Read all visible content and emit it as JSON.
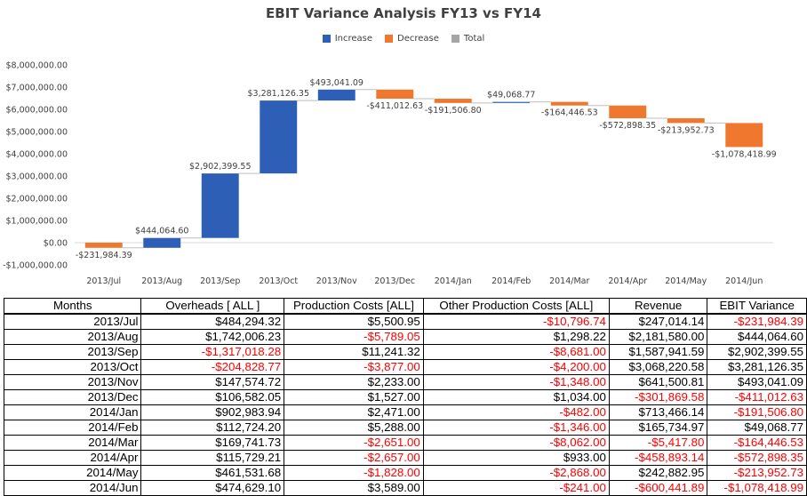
{
  "chart_data": {
    "type": "waterfall",
    "title": "EBIT Variance Analysis FY13 vs FY14",
    "legend": {
      "position": "top",
      "items": [
        {
          "label": "Increase",
          "color": "#2e5fb6"
        },
        {
          "label": "Decrease",
          "color": "#f0772e"
        },
        {
          "label": "Total",
          "color": "#a5a5a5"
        }
      ]
    },
    "categories": [
      "2013/Jul",
      "2013/Aug",
      "2013/Sep",
      "2013/Oct",
      "2013/Nov",
      "2013/Dec",
      "2014/Jan",
      "2014/Feb",
      "2014/Mar",
      "2014/Apr",
      "2014/May",
      "2014/Jun"
    ],
    "values": [
      -231984.39,
      444064.6,
      2902399.55,
      3281126.35,
      493041.09,
      -411012.63,
      -191506.8,
      49068.77,
      -164446.53,
      -572898.35,
      -213952.73,
      -1078418.99
    ],
    "data_labels": [
      "-$231,984.39",
      "$444,064.60",
      "$2,902,399.55",
      "$3,281,126.35",
      "$493,041.09",
      "-$411,012.63",
      "-$191,506.80",
      "$49,068.77",
      "-$164,446.53",
      "-$572,898.35",
      "-$213,952.73",
      "-$1,078,418.99"
    ],
    "y_ticks": [
      -1000000,
      0,
      1000000,
      2000000,
      3000000,
      4000000,
      5000000,
      6000000,
      7000000,
      8000000
    ],
    "y_tick_labels": [
      "-$1,000,000.00",
      "$0.00",
      "$1,000,000.00",
      "$2,000,000.00",
      "$3,000,000.00",
      "$4,000,000.00",
      "$5,000,000.00",
      "$6,000,000.00",
      "$7,000,000.00",
      "$8,000,000.00"
    ],
    "ylim": [
      -1000000,
      8000000
    ],
    "grid": false,
    "colors": {
      "increase": "#2e5fb6",
      "decrease": "#f0772e",
      "total": "#a5a5a5",
      "connector": "#bfbfbf"
    }
  },
  "table": {
    "headers": [
      "Months",
      "Overheads [ ALL ]",
      "Production Costs [ALL]",
      "Other Production Costs [ALL]",
      "Revenue",
      "EBIT Variance"
    ],
    "rows": [
      {
        "cells": [
          "2013/Jul",
          "$484,294.32",
          "$5,500.95",
          "-$10,796.74",
          "$247,014.14",
          "-$231,984.39"
        ],
        "negative": [
          false,
          false,
          false,
          true,
          false,
          true
        ]
      },
      {
        "cells": [
          "2013/Aug",
          "$1,742,006.23",
          "-$5,789.05",
          "$1,298.22",
          "$2,181,580.00",
          "$444,064.60"
        ],
        "negative": [
          false,
          false,
          true,
          false,
          false,
          false
        ]
      },
      {
        "cells": [
          "2013/Sep",
          "-$1,317,018.28",
          "$11,241.32",
          "-$8,681.00",
          "$1,587,941.59",
          "$2,902,399.55"
        ],
        "negative": [
          false,
          true,
          false,
          true,
          false,
          false
        ]
      },
      {
        "cells": [
          "2013/Oct",
          "-$204,828.77",
          "-$3,877.00",
          "-$4,200.00",
          "$3,068,220.58",
          "$3,281,126.35"
        ],
        "negative": [
          false,
          true,
          true,
          true,
          false,
          false
        ]
      },
      {
        "cells": [
          "2013/Nov",
          "$147,574.72",
          "$2,233.00",
          "-$1,348.00",
          "$641,500.81",
          "$493,041.09"
        ],
        "negative": [
          false,
          false,
          false,
          true,
          false,
          false
        ]
      },
      {
        "cells": [
          "2013/Dec",
          "$106,582.05",
          "$1,527.00",
          "$1,034.00",
          "-$301,869.58",
          "-$411,012.63"
        ],
        "negative": [
          false,
          false,
          false,
          false,
          true,
          true
        ]
      },
      {
        "cells": [
          "2014/Jan",
          "$902,983.94",
          "$2,471.00",
          "-$482.00",
          "$713,466.14",
          "-$191,506.80"
        ],
        "negative": [
          false,
          false,
          false,
          true,
          false,
          true
        ]
      },
      {
        "cells": [
          "2014/Feb",
          "$112,724.20",
          "$5,288.00",
          "-$1,346.00",
          "$165,734.97",
          "$49,068.77"
        ],
        "negative": [
          false,
          false,
          false,
          true,
          false,
          false
        ]
      },
      {
        "cells": [
          "2014/Mar",
          "$169,741.73",
          "-$2,651.00",
          "-$8,062.00",
          "-$5,417.80",
          "-$164,446.53"
        ],
        "negative": [
          false,
          false,
          true,
          true,
          true,
          true
        ]
      },
      {
        "cells": [
          "2014/Apr",
          "$115,729.21",
          "-$2,657.00",
          "$933.00",
          "-$458,893.14",
          "-$572,898.35"
        ],
        "negative": [
          false,
          false,
          true,
          false,
          true,
          true
        ]
      },
      {
        "cells": [
          "2014/May",
          "$461,531.68",
          "-$1,828.00",
          "-$2,868.00",
          "$242,882.95",
          "-$213,952.73"
        ],
        "negative": [
          false,
          false,
          true,
          true,
          false,
          true
        ]
      },
      {
        "cells": [
          "2014/Jun",
          "$474,629.10",
          "$3,589.00",
          "-$241.00",
          "-$600,441.89",
          "-$1,078,418.99"
        ],
        "negative": [
          false,
          false,
          false,
          true,
          true,
          true
        ]
      }
    ]
  }
}
